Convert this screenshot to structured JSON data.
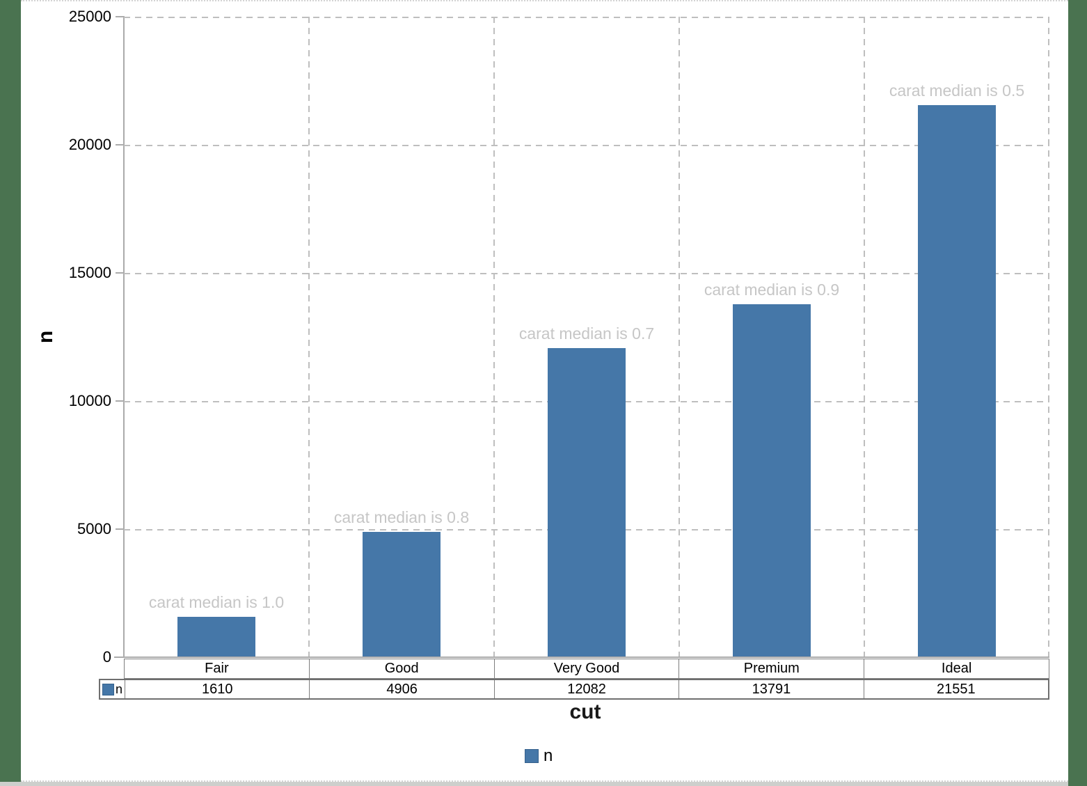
{
  "chart_data": {
    "type": "bar",
    "title": "",
    "xlabel": "cut",
    "ylabel": "n",
    "ylim": [
      0,
      25000
    ],
    "grid": true,
    "legend_position": "bottom",
    "categories": [
      "Fair",
      "Good",
      "Very Good",
      "Premium",
      "Ideal"
    ],
    "series": [
      {
        "name": "n",
        "values": [
          1610,
          4906,
          12082,
          13791,
          21551
        ]
      }
    ],
    "annotations": [
      "carat median is 1.0",
      "carat median is 0.8",
      "carat median is 0.7",
      "carat median is 0.9",
      "carat median is 0.5"
    ],
    "yticks": [
      "0",
      "5000",
      "10000",
      "15000",
      "20000",
      "25000"
    ],
    "colors": {
      "bar": "#4577A8",
      "annotation_text": "#C6C6C6",
      "gridline": "#BEBEBE",
      "axis_line": "#ABABAB",
      "background_frame": "#4A7350",
      "plot_background": "#FFFFFF"
    }
  }
}
